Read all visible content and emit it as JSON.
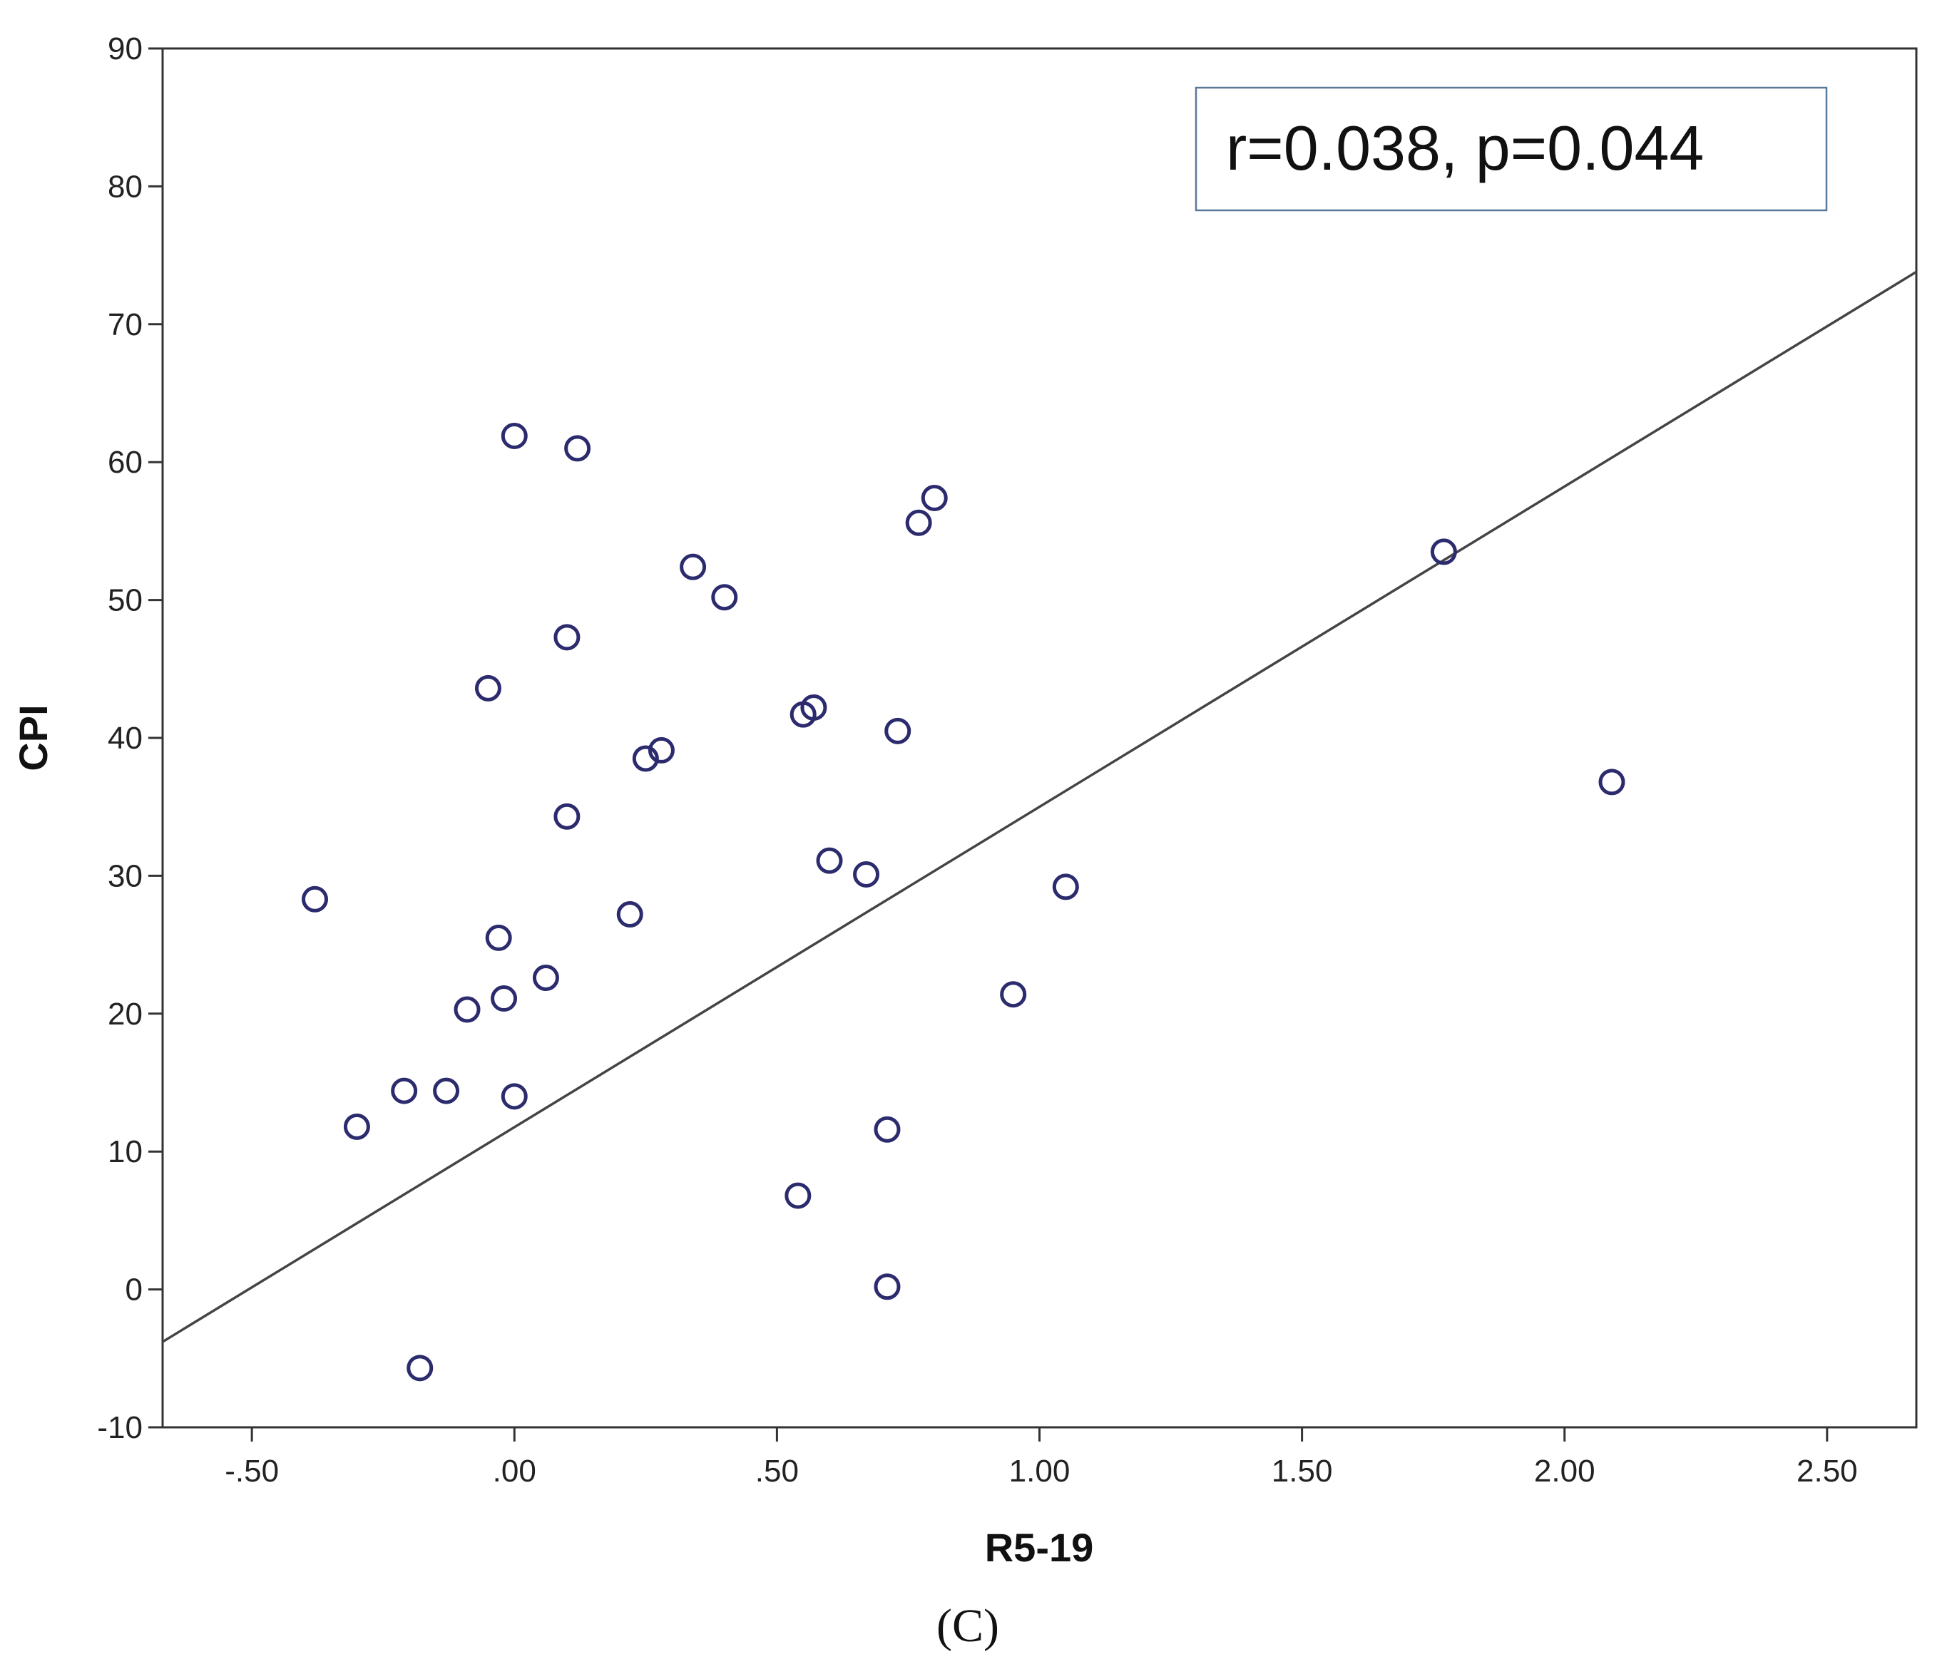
{
  "chart_data": {
    "type": "scatter",
    "title": "",
    "xlabel": "R5-19",
    "ylabel": "CPI",
    "xlim": [
      -0.67,
      2.67
    ],
    "ylim": [
      -10,
      90
    ],
    "x_ticks": [
      -0.5,
      0.0,
      0.5,
      1.0,
      1.5,
      2.0,
      2.5
    ],
    "x_tick_labels": [
      "-.50",
      ".00",
      ".50",
      "1.00",
      "1.50",
      "2.00",
      "2.50"
    ],
    "y_ticks": [
      -10,
      0,
      10,
      20,
      30,
      40,
      50,
      60,
      70,
      80,
      90
    ],
    "y_tick_labels": [
      "-10",
      "0",
      "10",
      "20",
      "30",
      "40",
      "50",
      "60",
      "70",
      "80",
      "90"
    ],
    "grid": false,
    "annotation": "r=0.038, p=0.044",
    "panel_label": "(C)",
    "marker_color": "#2b2b6e",
    "line_color": "#444444",
    "points": [
      {
        "x": -0.38,
        "y": 28.3
      },
      {
        "x": -0.3,
        "y": 11.8
      },
      {
        "x": -0.21,
        "y": 14.4
      },
      {
        "x": -0.18,
        "y": -5.7
      },
      {
        "x": -0.13,
        "y": 14.4
      },
      {
        "x": -0.09,
        "y": 20.3
      },
      {
        "x": -0.05,
        "y": 43.6
      },
      {
        "x": -0.03,
        "y": 25.5
      },
      {
        "x": -0.02,
        "y": 21.1
      },
      {
        "x": 0.0,
        "y": 61.9
      },
      {
        "x": 0.0,
        "y": 14.0
      },
      {
        "x": 0.06,
        "y": 22.6
      },
      {
        "x": 0.1,
        "y": 47.3
      },
      {
        "x": 0.1,
        "y": 34.3
      },
      {
        "x": 0.12,
        "y": 61.0
      },
      {
        "x": 0.22,
        "y": 27.2
      },
      {
        "x": 0.25,
        "y": 38.5
      },
      {
        "x": 0.28,
        "y": 39.1
      },
      {
        "x": 0.34,
        "y": 52.4
      },
      {
        "x": 0.4,
        "y": 50.2
      },
      {
        "x": 0.54,
        "y": 6.8
      },
      {
        "x": 0.55,
        "y": 41.7
      },
      {
        "x": 0.57,
        "y": 42.2
      },
      {
        "x": 0.6,
        "y": 31.1
      },
      {
        "x": 0.67,
        "y": 30.1
      },
      {
        "x": 0.71,
        "y": 11.6
      },
      {
        "x": 0.71,
        "y": 0.2
      },
      {
        "x": 0.73,
        "y": 40.5
      },
      {
        "x": 0.77,
        "y": 55.6
      },
      {
        "x": 0.8,
        "y": 57.4
      },
      {
        "x": 0.95,
        "y": 21.4
      },
      {
        "x": 1.05,
        "y": 29.2
      },
      {
        "x": 1.77,
        "y": 53.5
      },
      {
        "x": 2.09,
        "y": 36.8
      }
    ],
    "fit_line": {
      "x": [
        -0.67,
        2.67
      ],
      "y": [
        -3.8,
        73.8
      ]
    }
  }
}
